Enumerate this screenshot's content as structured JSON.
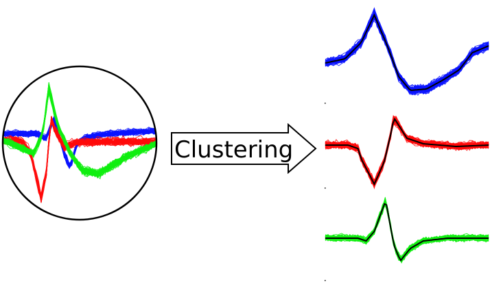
{
  "arrow": {
    "label": "Clustering"
  },
  "colors": {
    "cluster_1": "#0a14ff",
    "cluster_2": "#ff0a0a",
    "cluster_3": "#11ee11",
    "mean_line": "#000000",
    "outline": "#000000"
  },
  "clusters": [
    {
      "id": "blue",
      "color_key": "cluster_1"
    },
    {
      "id": "red",
      "color_key": "cluster_2"
    },
    {
      "id": "green",
      "color_key": "cluster_3"
    }
  ]
}
